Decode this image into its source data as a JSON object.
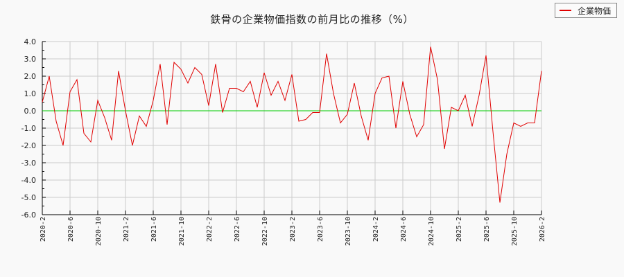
{
  "chart_data": {
    "type": "line",
    "title": "鉄骨の企業物価指数の前月比の推移（%）",
    "xlabel": "",
    "ylabel": "",
    "ylim": [
      -6.0,
      4.0
    ],
    "yticks": [
      "4.0",
      "3.0",
      "2.0",
      "1.0",
      "0.0",
      "-1.0",
      "-2.0",
      "-3.0",
      "-4.0",
      "-5.0",
      "-6.0"
    ],
    "xtick_labels": [
      "2020-2",
      "2020-6",
      "2020-10",
      "2021-2",
      "2021-6",
      "2021-10",
      "2022-2",
      "2022-6",
      "2022-10",
      "2023-2",
      "2023-6",
      "2023-10",
      "2024-2",
      "2024-6",
      "2024-10",
      "2025-2",
      "2025-6",
      "2025-10",
      "2026-2"
    ],
    "grid": true,
    "legend_position": "top-right",
    "reference_line": {
      "y": 0.0,
      "color": "#00cc00"
    },
    "x_start": "2020-2",
    "x_end": "2026-2",
    "series": [
      {
        "name": "企業物価",
        "color": "#e00000",
        "values": [
          0.5,
          2.0,
          -0.6,
          -2.0,
          1.1,
          1.8,
          -1.3,
          -1.8,
          0.6,
          -0.4,
          -1.7,
          2.3,
          0.0,
          -2.0,
          -0.3,
          -0.9,
          0.6,
          2.7,
          -0.8,
          2.8,
          2.4,
          1.6,
          2.5,
          2.1,
          0.3,
          2.7,
          -0.1,
          1.3,
          1.3,
          1.1,
          1.7,
          0.2,
          2.2,
          0.9,
          1.7,
          0.6,
          2.1,
          -0.6,
          -0.5,
          -0.1,
          -0.1,
          3.3,
          1.0,
          -0.7,
          -0.2,
          1.6,
          -0.3,
          -1.7,
          1.0,
          1.9,
          2.0,
          -1.0,
          1.7,
          -0.2,
          -1.5,
          -0.8,
          3.7,
          1.8,
          -2.2,
          0.2,
          0.0,
          0.9,
          -0.9,
          0.9,
          3.2,
          -1.2,
          -5.3,
          -2.5,
          -0.7,
          -0.9,
          -0.7,
          -0.7,
          2.3
        ]
      }
    ]
  },
  "legend": {
    "label": "企業物価",
    "color": "#e00000"
  }
}
